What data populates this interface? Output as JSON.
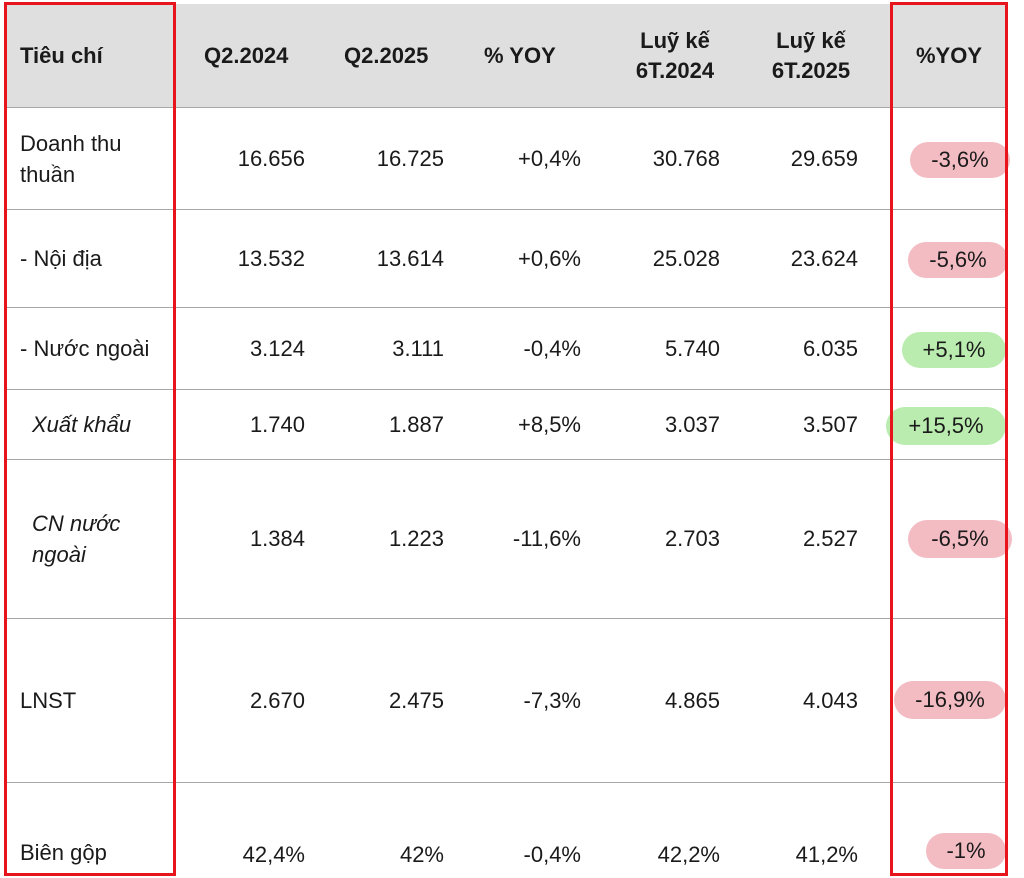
{
  "headers": {
    "criteria": "Tiêu chí",
    "q2_2024": "Q2.2024",
    "q2_2025": "Q2.2025",
    "yoy": "% YOY",
    "cum_2024_line1": "Luỹ kế",
    "cum_2024_line2": "6T.2024",
    "cum_2025_line1": "Luỹ kế",
    "cum_2025_line2": "6T.2025",
    "yoy_cum": "%YOY"
  },
  "rows": [
    {
      "label": "Doanh thu thuần",
      "q2_2024": "16.656",
      "q2_2025": "16.725",
      "yoy": "+0,4%",
      "cum_2024": "30.768",
      "cum_2025": "29.659",
      "yoy_cum": "-3,6%",
      "highlight": "negative"
    },
    {
      "label": "- Nội địa",
      "q2_2024": "13.532",
      "q2_2025": "13.614",
      "yoy": "+0,6%",
      "cum_2024": "25.028",
      "cum_2025": "23.624",
      "yoy_cum": "-5,6%",
      "highlight": "negative"
    },
    {
      "label": "- Nước ngoài",
      "q2_2024": "3.124",
      "q2_2025": "3.111",
      "yoy": "-0,4%",
      "cum_2024": "5.740",
      "cum_2025": "6.035",
      "yoy_cum": "+5,1%",
      "highlight": "positive"
    },
    {
      "label": "Xuất khẩu",
      "q2_2024": "1.740",
      "q2_2025": "1.887",
      "yoy": "+8,5%",
      "cum_2024": "3.037",
      "cum_2025": "3.507",
      "yoy_cum": "+15,5%",
      "highlight": "positive"
    },
    {
      "label": "CN nước ngoài",
      "q2_2024": "1.384",
      "q2_2025": "1.223",
      "yoy": "-11,6%",
      "cum_2024": "2.703",
      "cum_2025": "2.527",
      "yoy_cum": "-6,5%",
      "highlight": "negative"
    },
    {
      "label": "LNST",
      "q2_2024": "2.670",
      "q2_2025": "2.475",
      "yoy": "-7,3%",
      "cum_2024": "4.865",
      "cum_2025": "4.043",
      "yoy_cum": "-16,9%",
      "highlight": "negative"
    },
    {
      "label": "Biên gộp",
      "q2_2024": "42,4%",
      "q2_2025": "42%",
      "yoy": "-0,4%",
      "cum_2024": "42,2%",
      "cum_2025": "41,2%",
      "yoy_cum": "-1%",
      "highlight": "negative"
    }
  ],
  "colors": {
    "header_bg": "#dfdfdf",
    "negative_highlight": "#f3bcc3",
    "positive_highlight": "#b9ecae",
    "annotation_box": "#e8141c"
  }
}
